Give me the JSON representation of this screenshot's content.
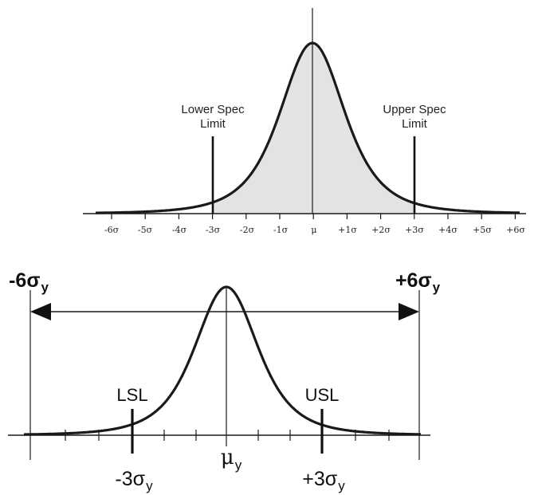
{
  "top": {
    "tick_labels": [
      "-6σ",
      "-5σ",
      "-4σ",
      "-3σ",
      "-2σ",
      "-1σ",
      "μ",
      "+1σ",
      "+2σ",
      "+3σ",
      "+4σ",
      "+5σ",
      "+6σ"
    ],
    "lower_spec": [
      "Lower Spec",
      "Limit"
    ],
    "upper_spec": [
      "Upper Spec",
      "Limit"
    ]
  },
  "bottom": {
    "left_label": "-6σ",
    "left_sub": "y",
    "right_label": "+6σ",
    "right_sub": "y",
    "lsl": "LSL",
    "usl": "USL",
    "mean_label": "μ",
    "mean_sub": "y",
    "minus3_label": "-3σ",
    "minus3_sub": "y",
    "plus3_label": "+3σ",
    "plus3_sub": "y"
  },
  "colors": {
    "shade": "#e3e3e3",
    "ink": "#1a1a1a"
  }
}
